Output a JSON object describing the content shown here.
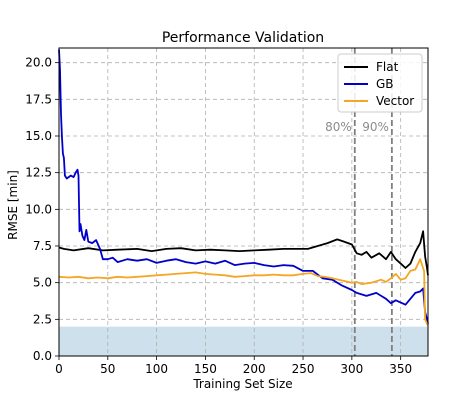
{
  "chart_data": {
    "type": "line",
    "title": "Performance Validation",
    "xlabel": "Training Set Size",
    "ylabel": "RMSE [min]",
    "xlim": [
      0,
      378
    ],
    "ylim": [
      0,
      21
    ],
    "xticks": [
      0,
      50,
      100,
      150,
      200,
      250,
      300,
      350
    ],
    "yticks": [
      0.0,
      2.5,
      5.0,
      7.5,
      10.0,
      12.5,
      15.0,
      17.5,
      20.0
    ],
    "grid": true,
    "legend_position": "top-right",
    "shaded_band": {
      "y_from": 0,
      "y_to": 2.0,
      "color": "#cfe0ed"
    },
    "vlines": [
      {
        "x": 303,
        "label": "80%",
        "color": "#808080"
      },
      {
        "x": 341,
        "label": "90%",
        "color": "#808080"
      }
    ],
    "series": [
      {
        "name": "Flat",
        "color": "#000000",
        "points": [
          [
            0,
            7.4
          ],
          [
            5,
            7.3
          ],
          [
            15,
            7.2
          ],
          [
            30,
            7.35
          ],
          [
            45,
            7.2
          ],
          [
            60,
            7.25
          ],
          [
            80,
            7.3
          ],
          [
            95,
            7.15
          ],
          [
            110,
            7.3
          ],
          [
            125,
            7.35
          ],
          [
            140,
            7.2
          ],
          [
            155,
            7.25
          ],
          [
            170,
            7.2
          ],
          [
            185,
            7.15
          ],
          [
            200,
            7.2
          ],
          [
            215,
            7.25
          ],
          [
            230,
            7.3
          ],
          [
            245,
            7.3
          ],
          [
            255,
            7.3
          ],
          [
            265,
            7.5
          ],
          [
            275,
            7.7
          ],
          [
            285,
            7.95
          ],
          [
            292,
            7.8
          ],
          [
            300,
            7.6
          ],
          [
            305,
            7.0
          ],
          [
            310,
            6.9
          ],
          [
            315,
            7.1
          ],
          [
            320,
            6.7
          ],
          [
            328,
            7.0
          ],
          [
            335,
            6.6
          ],
          [
            340,
            7.1
          ],
          [
            345,
            6.6
          ],
          [
            350,
            6.3
          ],
          [
            355,
            6.0
          ],
          [
            360,
            6.3
          ],
          [
            365,
            7.1
          ],
          [
            370,
            7.7
          ],
          [
            373,
            8.5
          ],
          [
            375,
            6.8
          ],
          [
            377,
            6.0
          ],
          [
            378,
            5.5
          ]
        ]
      },
      {
        "name": "GB",
        "color": "#0000cc",
        "points": [
          [
            0,
            20.9
          ],
          [
            1,
            19.5
          ],
          [
            2,
            16.5
          ],
          [
            3,
            15.0
          ],
          [
            4,
            13.8
          ],
          [
            5,
            13.5
          ],
          [
            6,
            12.3
          ],
          [
            8,
            12.1
          ],
          [
            12,
            12.3
          ],
          [
            15,
            12.2
          ],
          [
            17,
            12.5
          ],
          [
            19,
            12.7
          ],
          [
            20,
            12.3
          ],
          [
            21,
            8.5
          ],
          [
            22,
            9.0
          ],
          [
            24,
            8.2
          ],
          [
            26,
            7.9
          ],
          [
            28,
            8.6
          ],
          [
            30,
            7.8
          ],
          [
            34,
            7.7
          ],
          [
            38,
            7.9
          ],
          [
            42,
            7.3
          ],
          [
            45,
            6.6
          ],
          [
            50,
            6.6
          ],
          [
            55,
            6.7
          ],
          [
            60,
            6.4
          ],
          [
            70,
            6.6
          ],
          [
            80,
            6.5
          ],
          [
            90,
            6.6
          ],
          [
            100,
            6.35
          ],
          [
            110,
            6.5
          ],
          [
            120,
            6.6
          ],
          [
            130,
            6.4
          ],
          [
            140,
            6.3
          ],
          [
            150,
            6.45
          ],
          [
            160,
            6.3
          ],
          [
            170,
            6.5
          ],
          [
            180,
            6.2
          ],
          [
            190,
            6.3
          ],
          [
            200,
            6.35
          ],
          [
            210,
            6.2
          ],
          [
            220,
            6.1
          ],
          [
            230,
            6.2
          ],
          [
            240,
            6.15
          ],
          [
            250,
            5.8
          ],
          [
            260,
            5.8
          ],
          [
            270,
            5.3
          ],
          [
            280,
            5.2
          ],
          [
            290,
            4.8
          ],
          [
            300,
            4.5
          ],
          [
            305,
            4.3
          ],
          [
            315,
            4.1
          ],
          [
            325,
            4.3
          ],
          [
            335,
            3.9
          ],
          [
            340,
            3.6
          ],
          [
            345,
            3.8
          ],
          [
            355,
            3.5
          ],
          [
            365,
            4.3
          ],
          [
            370,
            4.4
          ],
          [
            373,
            4.6
          ],
          [
            375,
            3.0
          ],
          [
            377,
            2.5
          ],
          [
            378,
            2.2
          ]
        ]
      },
      {
        "name": "Vector",
        "color": "#f5a623",
        "points": [
          [
            0,
            5.4
          ],
          [
            10,
            5.35
          ],
          [
            20,
            5.4
          ],
          [
            30,
            5.3
          ],
          [
            40,
            5.35
          ],
          [
            50,
            5.3
          ],
          [
            60,
            5.4
          ],
          [
            70,
            5.35
          ],
          [
            80,
            5.4
          ],
          [
            90,
            5.45
          ],
          [
            100,
            5.5
          ],
          [
            110,
            5.55
          ],
          [
            120,
            5.6
          ],
          [
            130,
            5.65
          ],
          [
            140,
            5.7
          ],
          [
            150,
            5.6
          ],
          [
            160,
            5.55
          ],
          [
            170,
            5.5
          ],
          [
            180,
            5.4
          ],
          [
            190,
            5.45
          ],
          [
            200,
            5.5
          ],
          [
            210,
            5.5
          ],
          [
            220,
            5.55
          ],
          [
            230,
            5.5
          ],
          [
            240,
            5.5
          ],
          [
            250,
            5.6
          ],
          [
            258,
            5.65
          ],
          [
            265,
            5.45
          ],
          [
            272,
            5.4
          ],
          [
            280,
            5.3
          ],
          [
            290,
            5.15
          ],
          [
            300,
            5.0
          ],
          [
            305,
            5.05
          ],
          [
            310,
            4.9
          ],
          [
            320,
            5.0
          ],
          [
            330,
            5.2
          ],
          [
            335,
            5.05
          ],
          [
            340,
            5.3
          ],
          [
            345,
            5.6
          ],
          [
            350,
            5.2
          ],
          [
            355,
            5.3
          ],
          [
            360,
            5.8
          ],
          [
            365,
            5.9
          ],
          [
            370,
            6.6
          ],
          [
            372,
            6.2
          ],
          [
            374,
            5.8
          ],
          [
            375,
            2.5
          ],
          [
            377,
            2.2
          ],
          [
            378,
            2.1
          ]
        ]
      }
    ]
  }
}
